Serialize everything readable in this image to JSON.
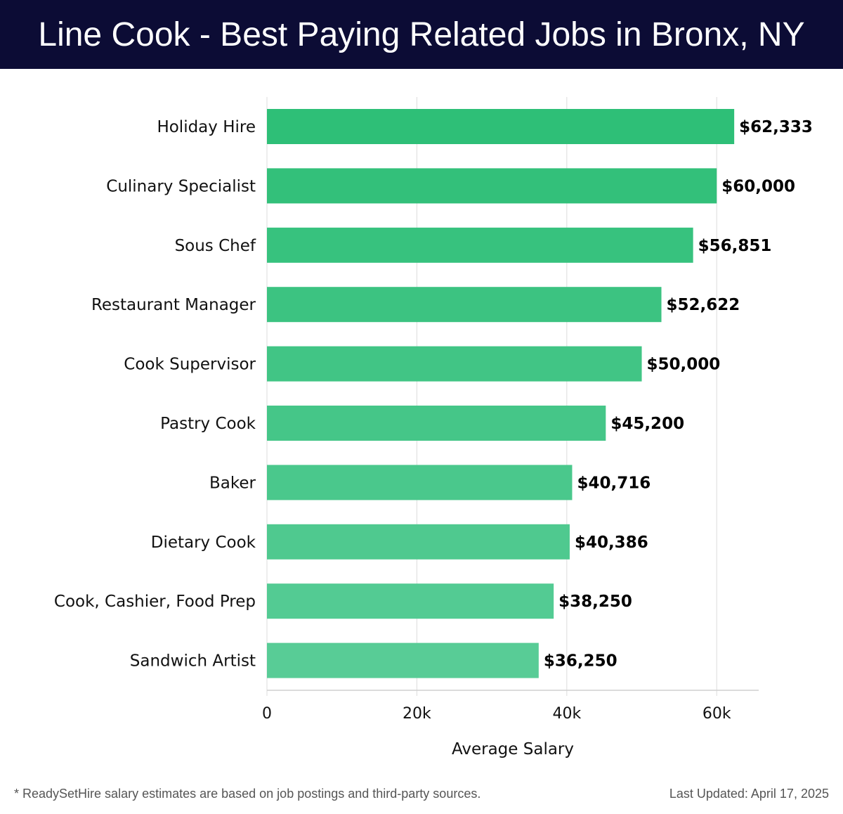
{
  "title": "Line Cook - Best Paying Related Jobs in Bronx, NY",
  "chart_data": {
    "type": "bar",
    "orientation": "horizontal",
    "categories": [
      "Holiday Hire",
      "Culinary Specialist",
      "Sous Chef",
      "Restaurant Manager",
      "Cook Supervisor",
      "Pastry Cook",
      "Baker",
      "Dietary Cook",
      "Cook, Cashier, Food Prep",
      "Sandwich Artist"
    ],
    "values": [
      62333,
      60000,
      56851,
      52622,
      50000,
      45200,
      40716,
      40386,
      38250,
      36250
    ],
    "value_labels": [
      "$62,333",
      "$60,000",
      "$56,851",
      "$52,622",
      "$50,000",
      "$45,200",
      "$40,716",
      "$40,386",
      "$38,250",
      "$36,250"
    ],
    "xlabel": "Average Salary",
    "ylabel": "",
    "xlim": [
      0,
      65600
    ],
    "xticks": [
      0,
      20000,
      40000,
      60000
    ],
    "xtick_labels": [
      "0",
      "20k",
      "40k",
      "60k"
    ],
    "grid": true,
    "colors": {
      "top": "#2ebf77",
      "bottom": "#58cc96"
    }
  },
  "footer": {
    "note": "* ReadySetHire salary estimates are based on job postings and third-party sources.",
    "updated": "Last Updated: April 17, 2025"
  }
}
